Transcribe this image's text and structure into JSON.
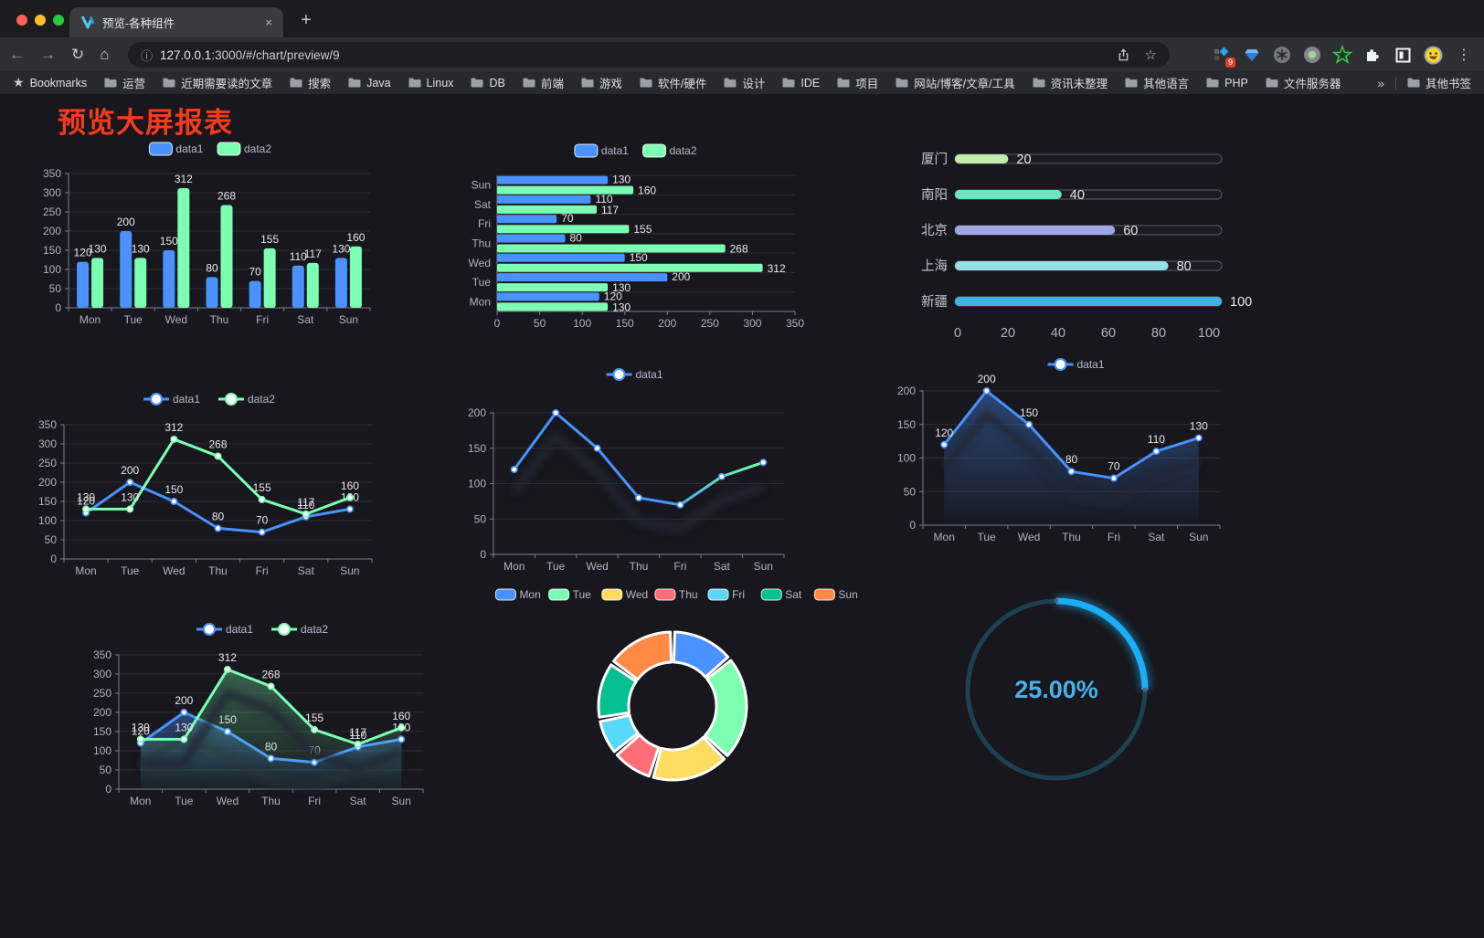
{
  "browser": {
    "tab_title": "预览-各种组件",
    "close_glyph": "×",
    "new_tab_glyph": "+",
    "url_host": "127.0.0.1",
    "url_rest": ":3000/#/chart/preview/9",
    "ext_badge": "9",
    "menu_glyph": "⋮",
    "icons": {
      "back": "←",
      "forward": "→",
      "reload": "↻",
      "home": "⌂",
      "info": "ⓘ",
      "star": "☆",
      "overflow": "»",
      "bookmarks_star": "★"
    },
    "bookmarks_label": "Bookmarks",
    "bookmarks": [
      "运营",
      "近期需要读的文章",
      "搜索",
      "Java",
      "Linux",
      "DB",
      "前端",
      "游戏",
      "软件/硬件",
      "设计",
      "IDE",
      "项目",
      "网站/博客/文章/工具",
      "资讯未整理",
      "其他语言",
      "PHP",
      "文件服务器"
    ],
    "other_bookmarks": "其他书签"
  },
  "page": {
    "title": "预览大屏报表",
    "title_color": "#f43b1e",
    "background": "#17171d"
  },
  "chart_data": [
    {
      "id": "bar-vertical",
      "type": "bar",
      "categories": [
        "Mon",
        "Tue",
        "Wed",
        "Thu",
        "Fri",
        "Sat",
        "Sun"
      ],
      "series": [
        {
          "name": "data1",
          "color": "#4992ff",
          "values": [
            120,
            200,
            150,
            80,
            70,
            110,
            130
          ]
        },
        {
          "name": "data2",
          "color": "#7cffb2",
          "values": [
            130,
            130,
            312,
            268,
            155,
            117,
            160
          ]
        }
      ],
      "ylim": [
        0,
        350
      ],
      "ytick": 50,
      "grid": true,
      "legend_position": "top"
    },
    {
      "id": "bar-horizontal",
      "type": "hbar",
      "categories": [
        "Mon",
        "Tue",
        "Wed",
        "Thu",
        "Fri",
        "Sat",
        "Sun"
      ],
      "series": [
        {
          "name": "data1",
          "color": "#4992ff",
          "values": [
            120,
            200,
            150,
            80,
            70,
            110,
            130
          ]
        },
        {
          "name": "data2",
          "color": "#7cffb2",
          "values": [
            130,
            130,
            312,
            268,
            155,
            117,
            160
          ]
        }
      ],
      "xlim": [
        0,
        350
      ],
      "xtick": 50,
      "legend_position": "top"
    },
    {
      "id": "progress-bars",
      "type": "progress",
      "items": [
        {
          "label": "厦门",
          "value": 20,
          "color": "#c4ebad"
        },
        {
          "label": "南阳",
          "value": 40,
          "color": "#6be6c1"
        },
        {
          "label": "北京",
          "value": 60,
          "color": "#a0a7e6"
        },
        {
          "label": "上海",
          "value": 80,
          "color": "#96dee8"
        },
        {
          "label": "新疆",
          "value": 100,
          "color": "#3fb1e3"
        }
      ],
      "xlim": [
        0,
        100
      ],
      "ticks": [
        0,
        20,
        40,
        60,
        80,
        100
      ]
    },
    {
      "id": "line-dual",
      "type": "line",
      "categories": [
        "Mon",
        "Tue",
        "Wed",
        "Thu",
        "Fri",
        "Sat",
        "Sun"
      ],
      "series": [
        {
          "name": "data1",
          "color": "#4992ff",
          "values": [
            120,
            200,
            150,
            80,
            70,
            110,
            130
          ]
        },
        {
          "name": "data2",
          "color": "#7cffb2",
          "values": [
            130,
            130,
            312,
            268,
            155,
            117,
            160
          ]
        }
      ],
      "ylim": [
        0,
        350
      ],
      "ytick": 50,
      "labels": true
    },
    {
      "id": "line-gradient",
      "type": "line",
      "categories": [
        "Mon",
        "Tue",
        "Wed",
        "Thu",
        "Fri",
        "Sat",
        "Sun"
      ],
      "series": [
        {
          "name": "data1",
          "color": "#4992ff",
          "color_end": "#7cffb2",
          "values": [
            120,
            200,
            150,
            80,
            70,
            110,
            130
          ]
        }
      ],
      "ylim": [
        0,
        200
      ],
      "ytick": 50,
      "labels": false,
      "shadow": true
    },
    {
      "id": "area-single",
      "type": "area",
      "categories": [
        "Mon",
        "Tue",
        "Wed",
        "Thu",
        "Fri",
        "Sat",
        "Sun"
      ],
      "series": [
        {
          "name": "data1",
          "color": "#4992ff",
          "values": [
            120,
            200,
            150,
            80,
            70,
            110,
            130
          ],
          "area": true
        }
      ],
      "ylim": [
        0,
        200
      ],
      "ytick": 50,
      "labels": true,
      "shadow": true
    },
    {
      "id": "area-dual",
      "type": "area",
      "categories": [
        "Mon",
        "Tue",
        "Wed",
        "Thu",
        "Fri",
        "Sat",
        "Sun"
      ],
      "series": [
        {
          "name": "data1",
          "color": "#4992ff",
          "values": [
            120,
            200,
            150,
            80,
            70,
            110,
            130
          ],
          "area": true
        },
        {
          "name": "data2",
          "color": "#7cffb2",
          "values": [
            130,
            130,
            312,
            268,
            155,
            117,
            160
          ],
          "area": true
        }
      ],
      "ylim": [
        0,
        350
      ],
      "ytick": 50,
      "labels": true,
      "shadow": true
    },
    {
      "id": "donut-week",
      "type": "donut",
      "categories": [
        "Mon",
        "Tue",
        "Wed",
        "Thu",
        "Fri",
        "Sat",
        "Sun"
      ],
      "values": [
        120,
        200,
        150,
        80,
        70,
        110,
        130
      ],
      "colors": [
        "#4992ff",
        "#7cffb2",
        "#fddd60",
        "#ff6e76",
        "#58d9f9",
        "#05c091",
        "#ff8a45"
      ]
    },
    {
      "id": "gauge-percent",
      "type": "gauge",
      "value": 25,
      "label": "25.00%",
      "color": "#1badf5",
      "track_color": "#1d4150",
      "text_color": "#49b0e8"
    }
  ]
}
